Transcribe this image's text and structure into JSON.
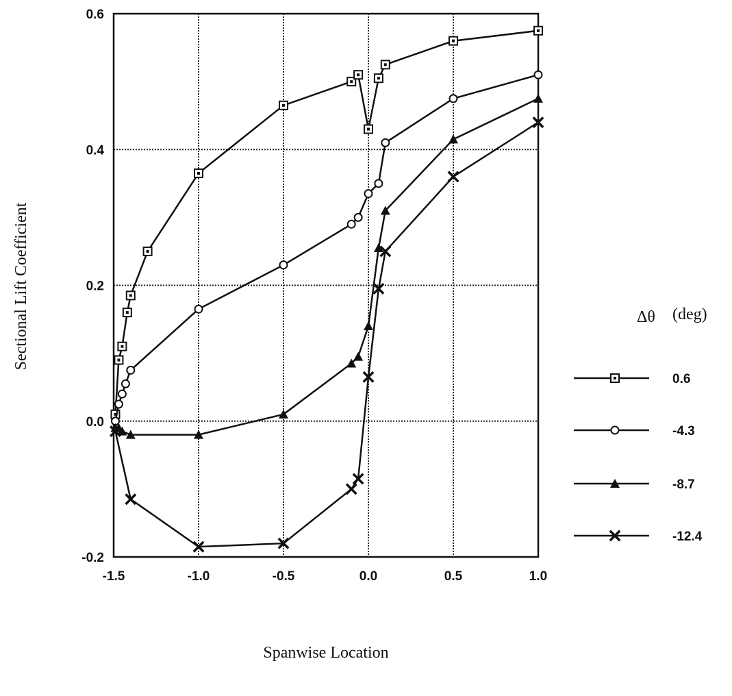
{
  "chart_data": {
    "type": "line",
    "xlabel": "Spanwise Location",
    "ylabel": "Sectional Lift Coefficient",
    "xlim": [
      -1.5,
      1.0
    ],
    "ylim": [
      -0.2,
      0.6
    ],
    "xticks": [
      -1.5,
      -1.0,
      -0.5,
      0.0,
      0.5,
      1.0
    ],
    "xtick_labels": [
      "-1.5",
      "-1.0",
      "-0.5",
      "0.0",
      "0.5",
      "1.0"
    ],
    "yticks": [
      -0.2,
      0.0,
      0.2,
      0.4,
      0.6
    ],
    "ytick_labels": [
      "-0.2",
      "0.0",
      "0.2",
      "0.4",
      "0.6"
    ],
    "grid": true,
    "legend": {
      "title_symbol": "Δθ",
      "title_unit": "(deg)",
      "placement": "right"
    },
    "series": [
      {
        "name": "0.6",
        "marker": "square-dot",
        "x": [
          -1.49,
          -1.47,
          -1.45,
          -1.42,
          -1.4,
          -1.3,
          -1.0,
          -0.5,
          -0.1,
          -0.06,
          0.0,
          0.06,
          0.1,
          0.5,
          1.0
        ],
        "y": [
          0.01,
          0.09,
          0.11,
          0.16,
          0.185,
          0.25,
          0.365,
          0.465,
          0.5,
          0.51,
          0.43,
          0.505,
          0.525,
          0.56,
          0.575
        ]
      },
      {
        "name": "-4.3",
        "marker": "circle-open",
        "x": [
          -1.49,
          -1.47,
          -1.45,
          -1.43,
          -1.4,
          -1.0,
          -0.5,
          -0.1,
          -0.06,
          0.0,
          0.06,
          0.1,
          0.5,
          1.0
        ],
        "y": [
          0.0,
          0.025,
          0.04,
          0.055,
          0.075,
          0.165,
          0.23,
          0.29,
          0.3,
          0.335,
          0.35,
          0.41,
          0.475,
          0.51
        ]
      },
      {
        "name": "-8.7",
        "marker": "triangle-filled",
        "x": [
          -1.49,
          -1.47,
          -1.45,
          -1.4,
          -1.0,
          -0.5,
          -0.1,
          -0.06,
          0.0,
          0.06,
          0.1,
          0.5,
          1.0
        ],
        "y": [
          -0.01,
          -0.01,
          -0.015,
          -0.02,
          -0.02,
          0.01,
          0.085,
          0.095,
          0.14,
          0.255,
          0.31,
          0.415,
          0.475
        ]
      },
      {
        "name": "-12.4",
        "marker": "x-filled",
        "x": [
          -1.49,
          -1.4,
          -1.0,
          -0.5,
          -0.1,
          -0.06,
          0.0,
          0.06,
          0.1,
          0.5,
          1.0
        ],
        "y": [
          -0.015,
          -0.115,
          -0.185,
          -0.18,
          -0.1,
          -0.085,
          0.065,
          0.195,
          0.25,
          0.36,
          0.44
        ]
      }
    ]
  }
}
